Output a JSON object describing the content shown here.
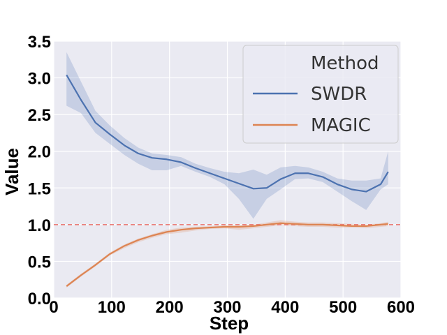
{
  "chart_data": {
    "type": "line",
    "xlabel": "Step",
    "ylabel": "Value",
    "xlim": [
      0,
      600
    ],
    "ylim": [
      0,
      3.5
    ],
    "xticks": [
      0,
      100,
      200,
      300,
      400,
      500,
      600
    ],
    "yticks": [
      "0.0",
      "0.5",
      "1.0",
      "1.5",
      "2.0",
      "2.5",
      "3.0",
      "3.5"
    ],
    "grid": true,
    "legend": {
      "title": "Method",
      "placement": "top-right"
    },
    "reference_line": {
      "y": 1.0,
      "style": "dashed",
      "color": "#e8706a"
    },
    "series": [
      {
        "name": "SWDR",
        "color": "#4c72b0",
        "x": [
          22,
          47,
          72,
          97,
          122,
          146,
          170,
          195,
          220,
          245,
          270,
          295,
          320,
          345,
          368,
          392,
          417,
          440,
          465,
          490,
          515,
          540,
          565,
          578
        ],
        "values": [
          3.04,
          2.7,
          2.39,
          2.23,
          2.08,
          1.97,
          1.91,
          1.89,
          1.85,
          1.77,
          1.7,
          1.63,
          1.56,
          1.49,
          1.5,
          1.62,
          1.7,
          1.7,
          1.65,
          1.55,
          1.48,
          1.45,
          1.55,
          1.72
        ],
        "band_upper": [
          3.35,
          2.95,
          2.55,
          2.35,
          2.18,
          2.05,
          1.97,
          1.95,
          1.92,
          1.83,
          1.77,
          1.72,
          1.7,
          1.75,
          1.68,
          1.78,
          1.8,
          1.78,
          1.72,
          1.63,
          1.6,
          1.6,
          1.63,
          2.0
        ],
        "band_lower": [
          2.62,
          2.52,
          2.25,
          2.1,
          1.95,
          1.83,
          1.74,
          1.74,
          1.8,
          1.72,
          1.65,
          1.55,
          1.35,
          1.08,
          1.35,
          1.48,
          1.62,
          1.63,
          1.58,
          1.45,
          1.32,
          1.2,
          1.48,
          1.55
        ]
      },
      {
        "name": "MAGIC",
        "color": "#dd8452",
        "x": [
          22,
          47,
          72,
          97,
          122,
          146,
          170,
          195,
          220,
          245,
          270,
          295,
          320,
          345,
          368,
          392,
          417,
          440,
          465,
          490,
          515,
          540,
          565,
          578
        ],
        "values": [
          0.16,
          0.31,
          0.45,
          0.6,
          0.71,
          0.79,
          0.85,
          0.9,
          0.93,
          0.95,
          0.96,
          0.97,
          0.97,
          0.98,
          1.0,
          1.02,
          1.01,
          1.0,
          1.0,
          0.99,
          0.98,
          0.98,
          1.0,
          1.01
        ],
        "band_upper": [
          0.18,
          0.33,
          0.47,
          0.62,
          0.73,
          0.81,
          0.87,
          0.93,
          0.96,
          0.97,
          0.98,
          0.99,
          0.99,
          1.0,
          1.03,
          1.06,
          1.04,
          1.03,
          1.03,
          1.02,
          1.01,
          1.0,
          1.02,
          1.04
        ],
        "band_lower": [
          0.14,
          0.29,
          0.43,
          0.58,
          0.68,
          0.76,
          0.82,
          0.87,
          0.89,
          0.92,
          0.94,
          0.95,
          0.93,
          0.95,
          0.97,
          0.99,
          0.98,
          0.97,
          0.97,
          0.96,
          0.96,
          0.95,
          0.97,
          0.98
        ]
      }
    ]
  }
}
